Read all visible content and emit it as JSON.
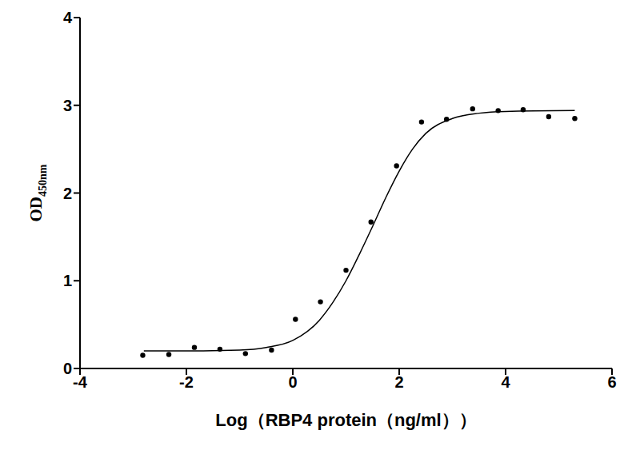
{
  "chart_data": {
    "type": "scatter",
    "x_label": "Log（RBP4 protein（ng/ml））",
    "y_label": "OD450nm",
    "xlim": [
      -4,
      6
    ],
    "xticks": [
      -4,
      -2,
      0,
      2,
      4,
      6
    ],
    "ylim": [
      0,
      4
    ],
    "yticks": [
      0,
      1,
      2,
      3,
      4
    ],
    "grid": false,
    "series": [
      {
        "type": "scatter",
        "color": "#000000",
        "marker": "circle",
        "x": [
          -2.82,
          -2.33,
          -1.85,
          -1.37,
          -0.89,
          -0.4,
          0.05,
          0.52,
          1.0,
          1.47,
          1.95,
          2.42,
          2.89,
          3.38,
          3.86,
          4.33,
          4.81,
          5.3
        ],
        "values": [
          0.15,
          0.16,
          0.24,
          0.22,
          0.17,
          0.21,
          0.56,
          0.76,
          1.12,
          1.67,
          2.31,
          2.81,
          2.84,
          2.96,
          2.94,
          2.95,
          2.87,
          2.85
        ]
      },
      {
        "type": "line",
        "color": "#000000",
        "line_style": "solid",
        "x": [
          -2.8,
          -2.0,
          -1.0,
          -0.5,
          0.0,
          0.5,
          0.75,
          1.0,
          1.25,
          1.5,
          1.75,
          2.0,
          2.25,
          2.5,
          3.0,
          3.5,
          4.0,
          5.3
        ],
        "values": [
          0.2,
          0.2,
          0.21,
          0.24,
          0.32,
          0.55,
          0.75,
          1.0,
          1.3,
          1.62,
          1.95,
          2.25,
          2.5,
          2.68,
          2.85,
          2.91,
          2.93,
          2.94
        ]
      }
    ]
  }
}
